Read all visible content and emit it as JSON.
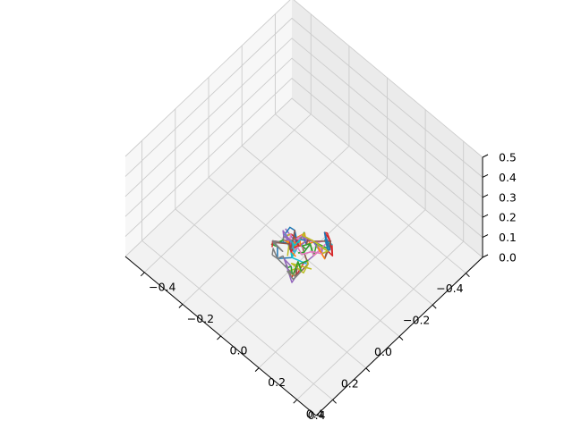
{
  "chart_data": {
    "type": "line3d",
    "title": "",
    "xlabel": "",
    "ylabel": "",
    "zlabel": "",
    "grid": true,
    "xlim": [
      -0.5,
      0.5
    ],
    "ylim": [
      -0.5,
      0.5
    ],
    "zlim": [
      0.0,
      0.5
    ],
    "x_ticks": [
      -0.4,
      -0.2,
      0.0,
      0.2,
      0.4
    ],
    "y_ticks": [
      -0.4,
      -0.2,
      0.0,
      0.2,
      0.4
    ],
    "z_ticks": [
      0.0,
      0.1,
      0.2,
      0.3,
      0.4,
      0.5
    ],
    "x_tick_labels": [
      "−0.4",
      "−0.2",
      "0.0",
      "0.2",
      "0.4"
    ],
    "y_tick_labels": [
      "−0.4",
      "−0.2",
      "0.0",
      "0.2",
      "0.4"
    ],
    "z_tick_labels": [
      "0.0",
      "0.1",
      "0.2",
      "0.3",
      "0.4",
      "0.5"
    ],
    "series_colors": [
      "#1f77b4",
      "#ff7f0e",
      "#2ca02c",
      "#d62728",
      "#9467bd",
      "#8c564b",
      "#e377c2",
      "#7f7f7f",
      "#bcbd22",
      "#17becf"
    ],
    "cluster": {
      "description_free": true,
      "center_x": 0.0,
      "center_y": -0.02,
      "extent": 0.1,
      "z_range": [
        0.0,
        0.05
      ]
    }
  }
}
